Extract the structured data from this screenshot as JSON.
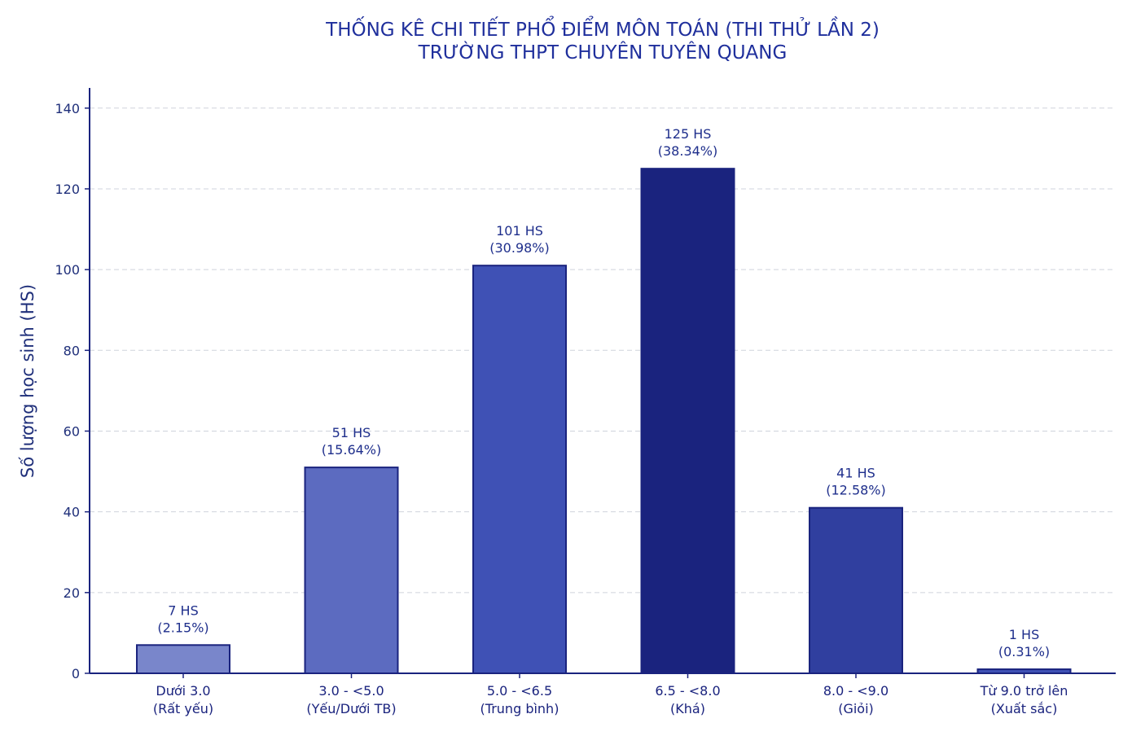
{
  "chart_data": {
    "type": "bar",
    "title": [
      "THỐNG KÊ CHI TIẾT PHỔ ĐIỂM MÔN TOÁN (THI THỬ LẦN 2)",
      "TRƯỜNG THPT CHUYÊN TUYÊN QUANG"
    ],
    "ylabel": "Số lượng học sinh (HS)",
    "xlabel": "",
    "ylim": [
      0,
      145
    ],
    "yticks": [
      0,
      20,
      40,
      60,
      80,
      100,
      120,
      140
    ],
    "grid": true,
    "categories": [
      [
        "Dưới 3.0",
        "(Rất yếu)"
      ],
      [
        "3.0 - <5.0",
        "(Yếu/Dưới TB)"
      ],
      [
        "5.0 - <6.5",
        "(Trung bình)"
      ],
      [
        "6.5 - <8.0",
        "(Khá)"
      ],
      [
        "8.0 - <9.0",
        "(Giỏi)"
      ],
      [
        "Từ 9.0 trở lên",
        "(Xuất sắc)"
      ]
    ],
    "values": [
      7,
      51,
      101,
      125,
      41,
      1
    ],
    "data_labels": [
      [
        "7 HS",
        "(2.15%)"
      ],
      [
        "51 HS",
        "(15.64%)"
      ],
      [
        "101 HS",
        "(30.98%)"
      ],
      [
        "125 HS",
        "(38.34%)"
      ],
      [
        "41 HS",
        "(12.58%)"
      ],
      [
        "1 HS",
        "(0.31%)"
      ]
    ],
    "colors": [
      "#7986cb",
      "#5c6bc0",
      "#3f51b5",
      "#1a237e",
      "#303f9f",
      "#3f51b5"
    ]
  }
}
